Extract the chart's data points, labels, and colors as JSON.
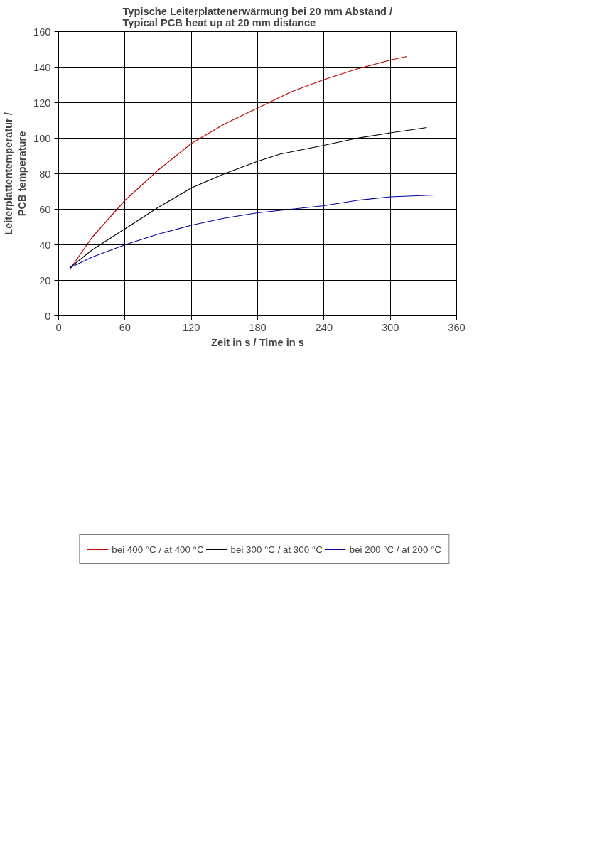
{
  "chart_data": {
    "type": "line",
    "title": "Typische Leiterplattenerwärmung bei 20 mm Abstand /\nTypical PCB heat up at 20 mm distance",
    "xlabel": "Zeit in s / Time in s",
    "ylabel": "Leiterplattentemperatur /\nPCB temperature",
    "xlim": [
      0,
      360
    ],
    "xticks": [
      0,
      60,
      120,
      180,
      240,
      300,
      360
    ],
    "ylim": [
      0,
      160
    ],
    "yticks": [
      0,
      20,
      40,
      60,
      80,
      100,
      120,
      140,
      160
    ],
    "grid": true,
    "legend": "bottom",
    "marker": "none",
    "line_style": "solid",
    "series": [
      {
        "name": "bei 400 °C / at 400 °C",
        "color": "#c00000",
        "x": [
          10,
          30,
          60,
          90,
          120,
          150,
          180,
          210,
          240,
          270,
          300,
          315
        ],
        "values": [
          26,
          44,
          65,
          82,
          97,
          108,
          117,
          126,
          133,
          139,
          144,
          146
        ]
      },
      {
        "name": "bei 300 °C / at 300 °C",
        "color": "#000000",
        "x": [
          10,
          30,
          60,
          90,
          120,
          150,
          180,
          200,
          240,
          270,
          300,
          333
        ],
        "values": [
          27,
          37,
          49,
          61,
          72,
          80,
          87,
          91,
          96,
          100,
          103,
          106
        ]
      },
      {
        "name": "bei 200 °C / at 200 °C",
        "color": "#000099",
        "x": [
          10,
          30,
          60,
          90,
          120,
          150,
          180,
          210,
          240,
          270,
          300,
          340
        ],
        "values": [
          27,
          33,
          40,
          46,
          51,
          55,
          58,
          60,
          62,
          65,
          67,
          68
        ]
      }
    ]
  }
}
